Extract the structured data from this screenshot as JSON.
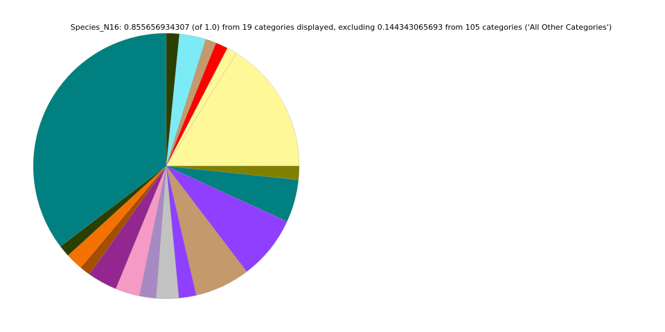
{
  "chart_data": {
    "type": "pie",
    "title": "Species_N16: 0.855656934307 (of 1.0) from 19 categories displayed, excluding 0.144343065693 from 105 categories ('All Other Categories')",
    "start": "top",
    "direction": "clockwise",
    "slices": [
      {
        "value": 0.0135,
        "color": "#2a3f00"
      },
      {
        "value": 0.0276,
        "color": "#7debf5"
      },
      {
        "value": 0.0112,
        "color": "#c49a6c"
      },
      {
        "value": 0.0128,
        "color": "#ff0000"
      },
      {
        "value": 0.0105,
        "color": "#fff899"
      },
      {
        "value": 0.1383,
        "color": "#fff899"
      },
      {
        "value": 0.0143,
        "color": "#808000"
      },
      {
        "value": 0.0444,
        "color": "#008080"
      },
      {
        "value": 0.0666,
        "color": "#8f40ff"
      },
      {
        "value": 0.0575,
        "color": "#c49a6c"
      },
      {
        "value": 0.0181,
        "color": "#8f40ff"
      },
      {
        "value": 0.0235,
        "color": "#c2c2c2"
      },
      {
        "value": 0.0171,
        "color": "#a68ac4"
      },
      {
        "value": 0.0254,
        "color": "#f49ac5"
      },
      {
        "value": 0.0309,
        "color": "#93278f"
      },
      {
        "value": 0.0112,
        "color": "#a64d00"
      },
      {
        "value": 0.0181,
        "color": "#f57200"
      },
      {
        "value": 0.0121,
        "color": "#2a3f00"
      },
      {
        "value": 0.3024,
        "color": "#008080"
      }
    ]
  }
}
